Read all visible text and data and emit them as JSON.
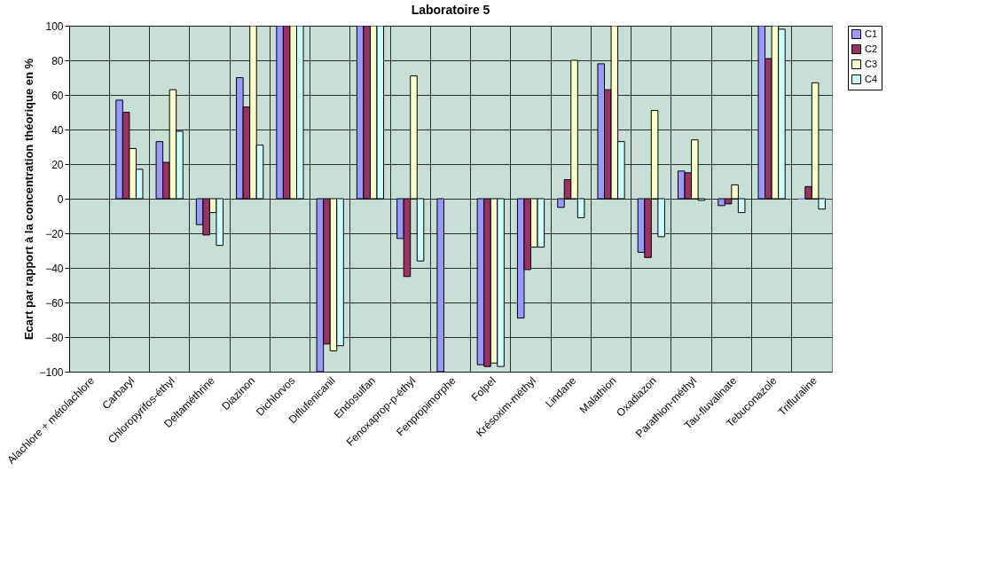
{
  "chart_data": {
    "type": "bar",
    "title": "Laboratoire 5",
    "ylabel": "Ecart par rapport à la concentration théorique en %",
    "categories": [
      "Alachlore + métolachlore",
      "Carbaryl",
      "Chloropyrifos-éthyl",
      "Deltaméthrine",
      "Diazinon",
      "Dichlorvos",
      "Diflufenicanil",
      "Endosulfan",
      "Fenoxaprop-p-éthyl",
      "Fenpropimorphe",
      "Folpel",
      "Krésoxim-méthyl",
      "Lindane",
      "Malathion",
      "Oxadiazon",
      "Parathion-méthyl",
      "Tau-fluvalinate",
      "Tebuconazole",
      "Trifluraline"
    ],
    "series": [
      {
        "name": "C1",
        "color": "#9999ff",
        "values": [
          null,
          57,
          33,
          -15,
          70,
          100,
          -100,
          100,
          -23,
          -100,
          -96,
          -69,
          -5,
          78,
          -31,
          16,
          -4,
          100,
          0
        ]
      },
      {
        "name": "C2",
        "color": "#993366",
        "values": [
          null,
          50,
          21,
          -21,
          53,
          100,
          -84,
          100,
          -45,
          null,
          -97,
          -41,
          11,
          63,
          -34,
          15,
          -3,
          81,
          7
        ]
      },
      {
        "name": "C3",
        "color": "#ffffcc",
        "values": [
          null,
          29,
          63,
          -8,
          100,
          100,
          -88,
          100,
          71,
          null,
          -95,
          -28,
          80,
          100,
          51,
          34,
          8,
          100,
          67
        ]
      },
      {
        "name": "C4",
        "color": "#ccffff",
        "values": [
          null,
          17,
          39,
          -27,
          31,
          100,
          -85,
          100,
          -36,
          null,
          -97,
          -28,
          -11,
          33,
          -22,
          -1,
          -8,
          98,
          -6
        ]
      }
    ],
    "ylim": [
      -100,
      100
    ],
    "yticks": [
      -100,
      -80,
      -60,
      -40,
      -20,
      0,
      20,
      40,
      60,
      80,
      100
    ],
    "grid": true,
    "legend": "right"
  }
}
